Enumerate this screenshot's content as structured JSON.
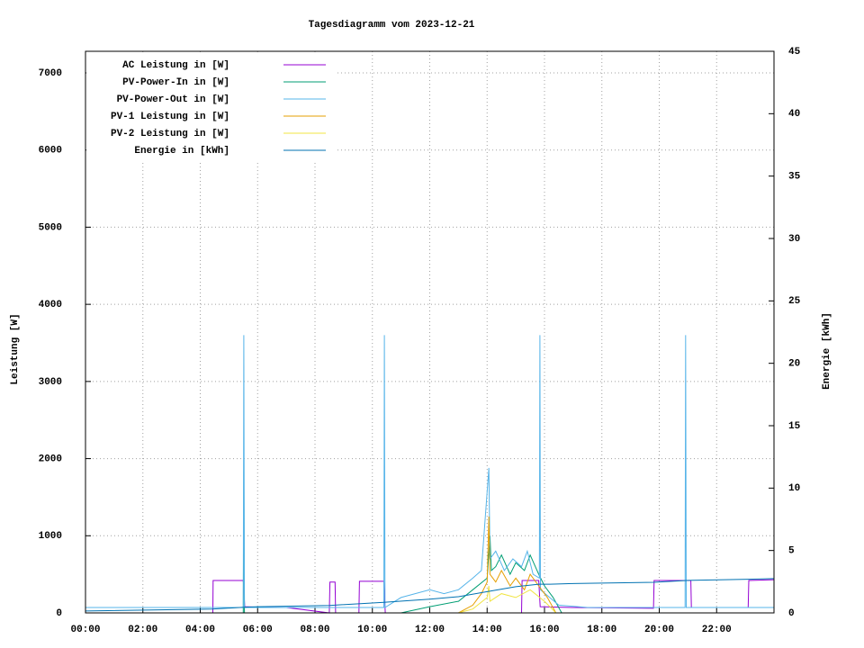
{
  "chart_data": {
    "type": "line",
    "title": "Tagesdiagramm vom 2023-12-21",
    "y_label": "Leistung [W]",
    "y2_label": "Energie [kWh]",
    "xlim": [
      0,
      24
    ],
    "ylim": [
      0,
      7280
    ],
    "y2lim": [
      0,
      45
    ],
    "xticks": [
      {
        "value": 0,
        "label": "00:00"
      },
      {
        "value": 2,
        "label": "02:00"
      },
      {
        "value": 4,
        "label": "04:00"
      },
      {
        "value": 6,
        "label": "06:00"
      },
      {
        "value": 8,
        "label": "08:00"
      },
      {
        "value": 10,
        "label": "10:00"
      },
      {
        "value": 12,
        "label": "12:00"
      },
      {
        "value": 14,
        "label": "14:00"
      },
      {
        "value": 16,
        "label": "16:00"
      },
      {
        "value": 18,
        "label": "18:00"
      },
      {
        "value": 20,
        "label": "20:00"
      },
      {
        "value": 22,
        "label": "22:00"
      }
    ],
    "yticks": [
      0,
      1000,
      2000,
      3000,
      4000,
      5000,
      6000,
      7000
    ],
    "y2ticks": [
      0,
      5,
      10,
      15,
      20,
      25,
      30,
      35,
      40,
      45
    ],
    "grid": true,
    "legend": "top-left",
    "series": [
      {
        "name": "AC Leistung in [W]",
        "color": "#9400d3",
        "x": [
          0,
          4.44,
          4.45,
          5.5,
          5.55,
          6,
          7,
          8.5,
          8.52,
          8.7,
          8.72,
          9.53,
          9.55,
          10.4,
          10.45,
          12,
          14,
          15.2,
          15.22,
          15.8,
          15.85,
          17,
          19.8,
          19.82,
          21.1,
          21.12,
          23.1,
          23.12,
          24
        ],
        "values": [
          0,
          0,
          420,
          420,
          80,
          75,
          70,
          0,
          400,
          400,
          0,
          0,
          410,
          410,
          0,
          0,
          0,
          0,
          420,
          420,
          80,
          70,
          60,
          420,
          420,
          70,
          70,
          420,
          430
        ]
      },
      {
        "name": "PV-Power-In in [W]",
        "color": "#009e73",
        "x": [
          0,
          5.5,
          5.52,
          5.54,
          11,
          12,
          13,
          13.5,
          14,
          14.1,
          14.15,
          14.3,
          14.5,
          14.8,
          15,
          15.3,
          15.5,
          15.8,
          16,
          16.3,
          16.6,
          24
        ],
        "values": [
          0,
          0,
          1850,
          0,
          0,
          80,
          150,
          300,
          450,
          1000,
          550,
          600,
          750,
          500,
          650,
          550,
          750,
          500,
          350,
          200,
          0,
          0
        ]
      },
      {
        "name": "PV-Power-Out in [W]",
        "color": "#56b4e9",
        "x": [
          0,
          5.5,
          5.52,
          5.54,
          6,
          10.4,
          10.42,
          10.44,
          11,
          12,
          12.5,
          13,
          13.5,
          13.8,
          14.06,
          14.1,
          14.3,
          14.6,
          14.9,
          15.2,
          15.4,
          15.6,
          15.82,
          15.84,
          15.86,
          16.5,
          17.5,
          20.9,
          20.92,
          20.94,
          23.1,
          24
        ],
        "values": [
          70,
          70,
          3600,
          70,
          70,
          70,
          3600,
          70,
          200,
          300,
          250,
          300,
          450,
          550,
          1880,
          700,
          800,
          550,
          700,
          600,
          800,
          500,
          450,
          3600,
          300,
          100,
          70,
          70,
          3600,
          70,
          70,
          70
        ]
      },
      {
        "name": "PV-1 Leistung in [W]",
        "color": "#e69f00",
        "x": [
          0,
          13,
          13.5,
          13.8,
          14,
          14.06,
          14.1,
          14.3,
          14.5,
          14.8,
          15,
          15.3,
          15.5,
          15.8,
          16.1,
          16.4,
          24
        ],
        "values": [
          0,
          0,
          100,
          250,
          400,
          1250,
          500,
          400,
          550,
          350,
          450,
          300,
          500,
          350,
          200,
          0,
          0
        ]
      },
      {
        "name": "PV-2 Leistung in [W]",
        "color": "#f0e442",
        "x": [
          0,
          13,
          13.5,
          14,
          14.06,
          14.1,
          14.5,
          15,
          15.5,
          16,
          16.4,
          24
        ],
        "values": [
          0,
          0,
          50,
          200,
          350,
          150,
          250,
          200,
          300,
          150,
          0,
          0
        ]
      },
      {
        "name": "Energie in [kWh]",
        "color": "#0072b2",
        "axis": "y2",
        "x": [
          0,
          4.4,
          5.5,
          6,
          8.5,
          10.4,
          12,
          13,
          14,
          15,
          15.8,
          16.2,
          17,
          19.8,
          21,
          23.1,
          24
        ],
        "values": [
          0.15,
          0.3,
          0.45,
          0.5,
          0.6,
          0.85,
          1.1,
          1.3,
          1.7,
          2.1,
          2.3,
          2.3,
          2.35,
          2.45,
          2.6,
          2.7,
          2.75
        ]
      }
    ]
  }
}
